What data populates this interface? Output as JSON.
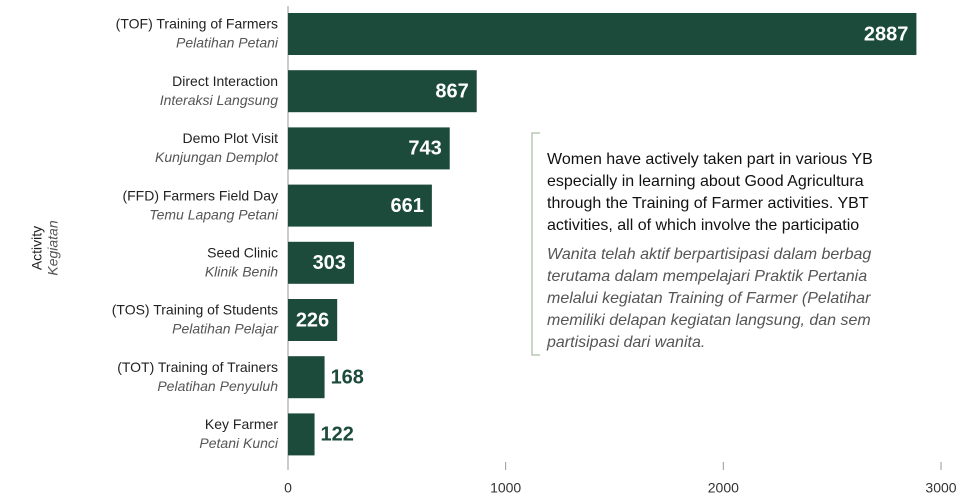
{
  "chart_data": {
    "type": "bar",
    "orientation": "horizontal",
    "categories": [
      "(TOF) Training of Farmers",
      "Direct Interaction",
      "Demo Plot Visit",
      "(FFD) Farmers Field Day",
      "Seed Clinic",
      "(TOS) Training of Students",
      "(TOT) Training of Trainers",
      "Key Farmer"
    ],
    "categories_translation": [
      "Pelatihan Petani",
      "Interaksi Langsung",
      "Kunjungan Demplot",
      "Temu Lapang Petani",
      "Klinik Benih",
      "Pelatihan Pelajar",
      "Pelatihan Penyuluh",
      "Petani Kunci"
    ],
    "values": [
      2887,
      867,
      743,
      661,
      303,
      226,
      168,
      122
    ],
    "color": "#1c4a3b",
    "xlim": [
      0,
      3000
    ],
    "xticks": [
      0,
      1000,
      2000,
      3000
    ],
    "y_axis_label": "Activity",
    "y_axis_label_translation": "Kegiatan",
    "annotation": {
      "lines": [
        "Women have actively taken part in various YB",
        "especially in learning about Good Agricultura",
        "through the Training of Farmer activities. YBT",
        "activities, all of which involve the participatio"
      ],
      "lines_translation": [
        "Wanita telah aktif berpartisipasi dalam berbag",
        "terutama dalam mempelajari Praktik Pertania",
        "melalui kegiatan Training of Farmer (Pelatihar",
        "memiliki delapan kegiatan langsung, dan sem",
        "partisipasi dari wanita."
      ]
    }
  }
}
